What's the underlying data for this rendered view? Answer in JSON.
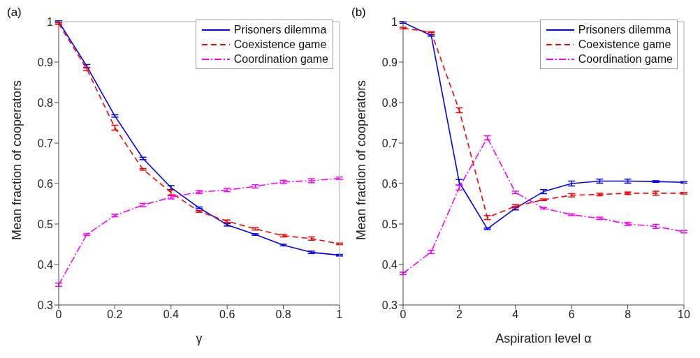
{
  "chart_data": [
    {
      "type": "line",
      "title": "(a)",
      "xlabel": "γ",
      "ylabel": "Mean fraction of cooperators",
      "x": [
        0,
        0.1,
        0.2,
        0.3,
        0.4,
        0.5,
        0.6,
        0.7,
        0.8,
        0.9,
        1
      ],
      "xlim": [
        0,
        1
      ],
      "xticks": [
        0,
        0.2,
        0.4,
        0.6,
        0.8,
        1
      ],
      "ylim": [
        0.3,
        1
      ],
      "yticks": [
        0.3,
        0.4,
        0.5,
        0.6,
        0.7,
        0.8,
        0.9,
        1
      ],
      "grid": false,
      "legend": "top right",
      "marker": "none",
      "series": [
        {
          "name": "Prisoners dilemma",
          "color": "#0000ff",
          "line_style": "solid",
          "values": [
            1,
            0.89,
            0.767,
            0.662,
            0.59,
            0.54,
            0.498,
            0.474,
            0.448,
            0.43,
            0.423
          ],
          "errors": [
            0.002,
            0.004,
            0.003,
            0.003,
            0.005,
            0.002,
            0.003,
            0.002,
            0.002,
            0.003,
            0.002
          ]
        },
        {
          "name": "Coexistence game",
          "color": "#ff0000",
          "line_style": "dashed",
          "values": [
            0.995,
            0.883,
            0.738,
            0.635,
            0.578,
            0.531,
            0.507,
            0.488,
            0.471,
            0.464,
            0.451
          ],
          "errors": [
            0.002,
            0.004,
            0.006,
            0.002,
            0.006,
            0.002,
            0.003,
            0.003,
            0.003,
            0.004,
            0.002
          ]
        },
        {
          "name": "Coordination game",
          "color": "#ff00ff",
          "line_style": "dashdot",
          "values": [
            0.35,
            0.474,
            0.521,
            0.547,
            0.566,
            0.579,
            0.584,
            0.593,
            0.604,
            0.607,
            0.613
          ],
          "errors": [
            0.004,
            0.002,
            0.003,
            0.004,
            0.004,
            0.004,
            0.004,
            0.004,
            0.004,
            0.005,
            0.003
          ]
        }
      ]
    },
    {
      "type": "line",
      "title": "(b)",
      "xlabel": "Aspiration level α",
      "ylabel": "Mean fraction of cooperators",
      "x": [
        0,
        1,
        2,
        3,
        4,
        5,
        6,
        7,
        8,
        9,
        10
      ],
      "xlim": [
        0,
        10
      ],
      "xticks": [
        0,
        2,
        4,
        6,
        8,
        10
      ],
      "ylim": [
        0.3,
        1
      ],
      "yticks": [
        0.3,
        0.4,
        0.5,
        0.6,
        0.7,
        0.8,
        0.9,
        1
      ],
      "grid": false,
      "legend": "top right",
      "marker": "none",
      "series": [
        {
          "name": "Prisoners dilemma",
          "color": "#0000ff",
          "line_style": "solid",
          "values": [
            0.998,
            0.966,
            0.603,
            0.488,
            0.539,
            0.58,
            0.6,
            0.606,
            0.606,
            0.605,
            0.603
          ],
          "errors": [
            0.002,
            0.002,
            0.007,
            0.002,
            0.004,
            0.005,
            0.006,
            0.005,
            0.005,
            0.002,
            0.002
          ]
        },
        {
          "name": "Coexistence game",
          "color": "#ff0000",
          "line_style": "dashed",
          "values": [
            0.984,
            0.974,
            0.781,
            0.516,
            0.544,
            0.56,
            0.571,
            0.573,
            0.576,
            0.576,
            0.576
          ],
          "errors": [
            0.002,
            0.001,
            0.006,
            0.005,
            0.004,
            0.002,
            0.004,
            0.003,
            0.003,
            0.005,
            0.002
          ]
        },
        {
          "name": "Coordination game",
          "color": "#ff00ff",
          "line_style": "dashdot",
          "values": [
            0.378,
            0.431,
            0.59,
            0.713,
            0.578,
            0.539,
            0.523,
            0.514,
            0.5,
            0.494,
            0.481
          ],
          "errors": [
            0.003,
            0.004,
            0.006,
            0.005,
            0.003,
            0.002,
            0.002,
            0.003,
            0.004,
            0.005,
            0.003
          ]
        }
      ]
    }
  ]
}
